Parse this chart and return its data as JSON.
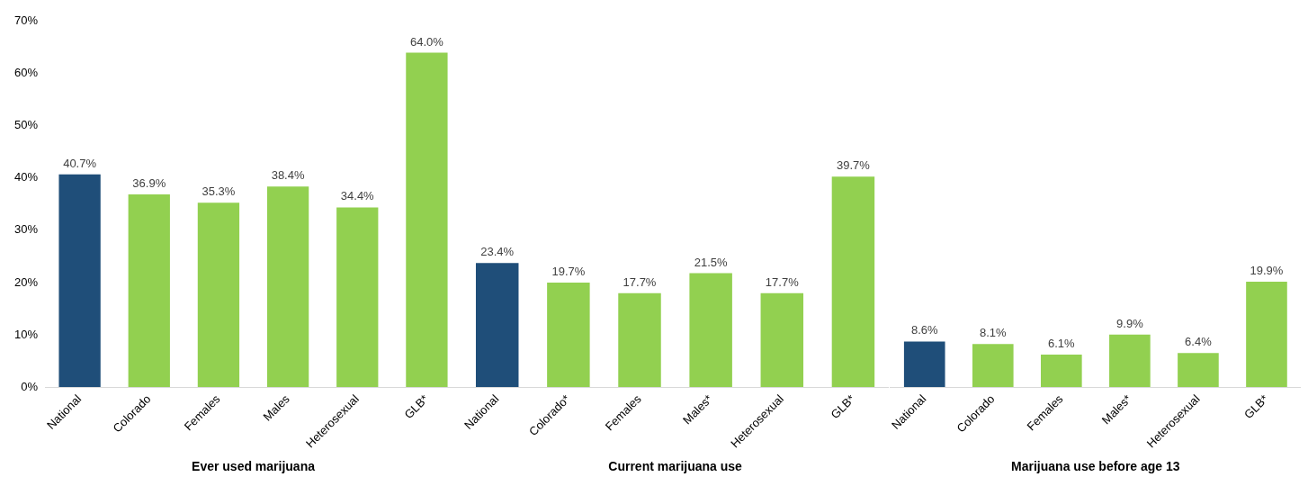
{
  "chart_data": [
    {
      "type": "bar",
      "xlabel": "Ever used marijuana",
      "categories": [
        "National",
        "Colorado",
        "Females",
        "Males",
        "Heterosexual",
        "GLB*"
      ],
      "values": [
        40.7,
        36.9,
        35.3,
        38.4,
        34.4,
        64.0
      ],
      "value_labels": [
        "40.7%",
        "36.9%",
        "35.3%",
        "38.4%",
        "34.4%",
        "64.0%"
      ],
      "colors": [
        "#1f4e79",
        "#92d050",
        "#92d050",
        "#92d050",
        "#92d050",
        "#92d050"
      ],
      "ylim": [
        0,
        70
      ],
      "yticks": [
        {
          "value": 0,
          "label": "0%"
        },
        {
          "value": 10,
          "label": "10%"
        },
        {
          "value": 20,
          "label": "20%"
        },
        {
          "value": 30,
          "label": "30%"
        },
        {
          "value": 40,
          "label": "40%"
        },
        {
          "value": 50,
          "label": "50%"
        },
        {
          "value": 60,
          "label": "60%"
        },
        {
          "value": 70,
          "label": "70%"
        }
      ],
      "grid": false
    },
    {
      "type": "bar",
      "xlabel": "Current marijuana use",
      "categories": [
        "National",
        "Colorado*",
        "Females",
        "Males*",
        "Heterosexual",
        "GLB*"
      ],
      "values": [
        23.4,
        19.7,
        17.7,
        21.5,
        17.7,
        39.7
      ],
      "value_labels": [
        "23.4%",
        "19.7%",
        "17.7%",
        "21.5%",
        "17.7%",
        "39.7%"
      ],
      "colors": [
        "#1f4e79",
        "#92d050",
        "#92d050",
        "#92d050",
        "#92d050",
        "#92d050"
      ],
      "ylim": [
        0,
        70
      ],
      "tick_labels": "x",
      "grid": false
    },
    {
      "type": "bar",
      "xlabel": "Marijuana use before age 13",
      "categories": [
        "National",
        "Colorado",
        "Females",
        "Males*",
        "Heterosexual",
        "GLB*"
      ],
      "values": [
        8.6,
        8.1,
        6.1,
        9.9,
        6.4,
        19.9
      ],
      "value_labels": [
        "8.6%",
        "8.1%",
        "6.1%",
        "9.9%",
        "6.4%",
        "19.9%"
      ],
      "colors": [
        "#1f4e79",
        "#92d050",
        "#92d050",
        "#92d050",
        "#92d050",
        "#92d050"
      ],
      "ylim": [
        0,
        70
      ],
      "tick_labels": "x",
      "grid": false
    }
  ]
}
